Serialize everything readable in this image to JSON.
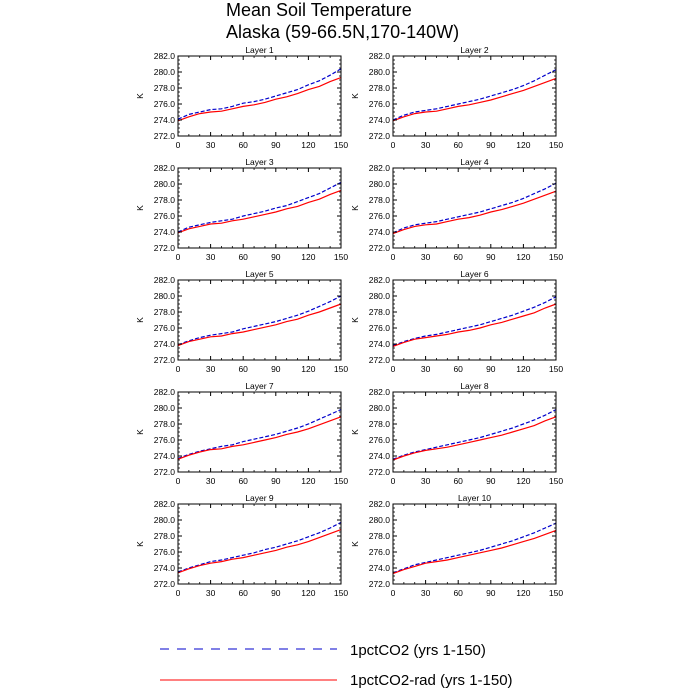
{
  "figure": {
    "title_line1": "Mean Soil Temperature",
    "title_line2": "Alaska (59-66.5N,170-140W)"
  },
  "legend": {
    "entries": [
      {
        "label": "1pctCO2 (yrs 1-150)",
        "color": "#0000cc",
        "dash": true
      },
      {
        "label": "1pctCO2-rad (yrs 1-150)",
        "color": "#ff0000",
        "dash": false
      }
    ]
  },
  "chart_data": [
    {
      "type": "line",
      "title": "Layer 1",
      "ylabel": "K",
      "xlim": [
        0,
        150
      ],
      "ylim": [
        272,
        282
      ],
      "xticks": [
        0,
        30,
        60,
        90,
        120,
        150
      ],
      "yticks": [
        272,
        274,
        276,
        278,
        280,
        282
      ],
      "x": [
        0,
        10,
        20,
        30,
        40,
        50,
        60,
        70,
        80,
        90,
        100,
        110,
        120,
        130,
        140,
        150
      ],
      "series": [
        {
          "name": "1pctCO2 (yrs 1-150)",
          "values": [
            274.1,
            274.7,
            275.0,
            275.3,
            275.4,
            275.7,
            276.1,
            276.3,
            276.6,
            277.0,
            277.4,
            277.8,
            278.4,
            278.9,
            279.6,
            280.4
          ]
        },
        {
          "name": "1pctCO2-rad (yrs 1-150)",
          "values": [
            273.9,
            274.4,
            274.8,
            275.0,
            275.1,
            275.4,
            275.7,
            275.9,
            276.2,
            276.6,
            276.9,
            277.3,
            277.8,
            278.2,
            278.8,
            279.3
          ]
        }
      ]
    },
    {
      "type": "line",
      "title": "Layer 2",
      "ylabel": "K",
      "xlim": [
        0,
        150
      ],
      "ylim": [
        272,
        282
      ],
      "xticks": [
        0,
        30,
        60,
        90,
        120,
        150
      ],
      "yticks": [
        272,
        274,
        276,
        278,
        280,
        282
      ],
      "x": [
        0,
        10,
        20,
        30,
        40,
        50,
        60,
        70,
        80,
        90,
        100,
        110,
        120,
        130,
        140,
        150
      ],
      "series": [
        {
          "name": "1pctCO2 (yrs 1-150)",
          "values": [
            274.0,
            274.6,
            275.0,
            275.2,
            275.4,
            275.7,
            276.0,
            276.3,
            276.6,
            277.0,
            277.4,
            277.8,
            278.3,
            278.9,
            279.6,
            280.3
          ]
        },
        {
          "name": "1pctCO2-rad (yrs 1-150)",
          "values": [
            273.9,
            274.4,
            274.8,
            275.0,
            275.1,
            275.4,
            275.7,
            275.9,
            276.2,
            276.5,
            276.9,
            277.3,
            277.7,
            278.2,
            278.7,
            279.2
          ]
        }
      ]
    },
    {
      "type": "line",
      "title": "Layer 3",
      "ylabel": "K",
      "xlim": [
        0,
        150
      ],
      "ylim": [
        272,
        282
      ],
      "xticks": [
        0,
        30,
        60,
        90,
        120,
        150
      ],
      "yticks": [
        272,
        274,
        276,
        278,
        280,
        282
      ],
      "x": [
        0,
        10,
        20,
        30,
        40,
        50,
        60,
        70,
        80,
        90,
        100,
        110,
        120,
        130,
        140,
        150
      ],
      "series": [
        {
          "name": "1pctCO2 (yrs 1-150)",
          "values": [
            274.0,
            274.6,
            274.9,
            275.2,
            275.4,
            275.6,
            276.0,
            276.3,
            276.6,
            277.0,
            277.3,
            277.8,
            278.3,
            278.8,
            279.5,
            280.2
          ]
        },
        {
          "name": "1pctCO2-rad (yrs 1-150)",
          "values": [
            273.9,
            274.4,
            274.7,
            275.0,
            275.1,
            275.4,
            275.6,
            275.9,
            276.2,
            276.5,
            276.9,
            277.2,
            277.7,
            278.1,
            278.7,
            279.2
          ]
        }
      ]
    },
    {
      "type": "line",
      "title": "Layer 4",
      "ylabel": "K",
      "xlim": [
        0,
        150
      ],
      "ylim": [
        272,
        282
      ],
      "xticks": [
        0,
        30,
        60,
        90,
        120,
        150
      ],
      "yticks": [
        272,
        274,
        276,
        278,
        280,
        282
      ],
      "x": [
        0,
        10,
        20,
        30,
        40,
        50,
        60,
        70,
        80,
        90,
        100,
        110,
        120,
        130,
        140,
        150
      ],
      "series": [
        {
          "name": "1pctCO2 (yrs 1-150)",
          "values": [
            273.9,
            274.5,
            274.9,
            275.1,
            275.3,
            275.6,
            275.9,
            276.2,
            276.5,
            276.9,
            277.3,
            277.7,
            278.2,
            278.8,
            279.4,
            280.1
          ]
        },
        {
          "name": "1pctCO2-rad (yrs 1-150)",
          "values": [
            273.8,
            274.3,
            274.7,
            274.9,
            275.0,
            275.3,
            275.6,
            275.8,
            276.1,
            276.5,
            276.8,
            277.2,
            277.6,
            278.1,
            278.6,
            279.1
          ]
        }
      ]
    },
    {
      "type": "line",
      "title": "Layer 5",
      "ylabel": "K",
      "xlim": [
        0,
        150
      ],
      "ylim": [
        272,
        282
      ],
      "xticks": [
        0,
        30,
        60,
        90,
        120,
        150
      ],
      "yticks": [
        272,
        274,
        276,
        278,
        280,
        282
      ],
      "x": [
        0,
        10,
        20,
        30,
        40,
        50,
        60,
        70,
        80,
        90,
        100,
        110,
        120,
        130,
        140,
        150
      ],
      "series": [
        {
          "name": "1pctCO2 (yrs 1-150)",
          "values": [
            273.9,
            274.4,
            274.8,
            275.1,
            275.3,
            275.5,
            275.9,
            276.2,
            276.5,
            276.8,
            277.2,
            277.6,
            278.1,
            278.7,
            279.3,
            280.0
          ]
        },
        {
          "name": "1pctCO2-rad (yrs 1-150)",
          "values": [
            273.8,
            274.3,
            274.6,
            274.9,
            275.0,
            275.3,
            275.5,
            275.8,
            276.1,
            276.4,
            276.8,
            277.1,
            277.6,
            278.0,
            278.5,
            279.0
          ]
        }
      ]
    },
    {
      "type": "line",
      "title": "Layer 6",
      "ylabel": "K",
      "xlim": [
        0,
        150
      ],
      "ylim": [
        272,
        282
      ],
      "xticks": [
        0,
        30,
        60,
        90,
        120,
        150
      ],
      "yticks": [
        272,
        274,
        276,
        278,
        280,
        282
      ],
      "x": [
        0,
        10,
        20,
        30,
        40,
        50,
        60,
        70,
        80,
        90,
        100,
        110,
        120,
        130,
        140,
        150
      ],
      "series": [
        {
          "name": "1pctCO2 (yrs 1-150)",
          "values": [
            273.8,
            274.3,
            274.7,
            275.0,
            275.2,
            275.5,
            275.8,
            276.1,
            276.4,
            276.8,
            277.2,
            277.6,
            278.1,
            278.6,
            279.2,
            279.9
          ]
        },
        {
          "name": "1pctCO2-rad (yrs 1-150)",
          "values": [
            273.7,
            274.2,
            274.6,
            274.8,
            275.0,
            275.2,
            275.5,
            275.7,
            276.0,
            276.4,
            276.7,
            277.1,
            277.5,
            277.9,
            278.5,
            279.0
          ]
        }
      ]
    },
    {
      "type": "line",
      "title": "Layer 7",
      "ylabel": "K",
      "xlim": [
        0,
        150
      ],
      "ylim": [
        272,
        282
      ],
      "xticks": [
        0,
        30,
        60,
        90,
        120,
        150
      ],
      "yticks": [
        272,
        274,
        276,
        278,
        280,
        282
      ],
      "x": [
        0,
        10,
        20,
        30,
        40,
        50,
        60,
        70,
        80,
        90,
        100,
        110,
        120,
        130,
        140,
        150
      ],
      "series": [
        {
          "name": "1pctCO2 (yrs 1-150)",
          "values": [
            273.7,
            274.2,
            274.6,
            274.9,
            275.2,
            275.4,
            275.8,
            276.1,
            276.4,
            276.7,
            277.1,
            277.5,
            278.0,
            278.6,
            279.2,
            279.8
          ]
        },
        {
          "name": "1pctCO2-rad (yrs 1-150)",
          "values": [
            273.6,
            274.1,
            274.5,
            274.8,
            274.9,
            275.2,
            275.4,
            275.7,
            276.0,
            276.3,
            276.7,
            277.0,
            277.4,
            277.9,
            278.4,
            278.9
          ]
        }
      ]
    },
    {
      "type": "line",
      "title": "Layer 8",
      "ylabel": "K",
      "xlim": [
        0,
        150
      ],
      "ylim": [
        272,
        282
      ],
      "xticks": [
        0,
        30,
        60,
        90,
        120,
        150
      ],
      "yticks": [
        272,
        274,
        276,
        278,
        280,
        282
      ],
      "x": [
        0,
        10,
        20,
        30,
        40,
        50,
        60,
        70,
        80,
        90,
        100,
        110,
        120,
        130,
        140,
        150
      ],
      "series": [
        {
          "name": "1pctCO2 (yrs 1-150)",
          "values": [
            273.6,
            274.1,
            274.5,
            274.8,
            275.1,
            275.4,
            275.7,
            276.0,
            276.3,
            276.7,
            277.1,
            277.5,
            278.0,
            278.5,
            279.1,
            279.8
          ]
        },
        {
          "name": "1pctCO2-rad (yrs 1-150)",
          "values": [
            273.5,
            274.0,
            274.4,
            274.7,
            274.9,
            275.1,
            275.4,
            275.7,
            276.0,
            276.3,
            276.6,
            277.0,
            277.4,
            277.8,
            278.4,
            278.9
          ]
        }
      ]
    },
    {
      "type": "line",
      "title": "Layer 9",
      "ylabel": "K",
      "xlim": [
        0,
        150
      ],
      "ylim": [
        272,
        282
      ],
      "xticks": [
        0,
        30,
        60,
        90,
        120,
        150
      ],
      "yticks": [
        272,
        274,
        276,
        278,
        280,
        282
      ],
      "x": [
        0,
        10,
        20,
        30,
        40,
        50,
        60,
        70,
        80,
        90,
        100,
        110,
        120,
        130,
        140,
        150
      ],
      "series": [
        {
          "name": "1pctCO2 (yrs 1-150)",
          "values": [
            273.5,
            274.0,
            274.4,
            274.8,
            275.0,
            275.3,
            275.6,
            275.9,
            276.3,
            276.6,
            277.0,
            277.4,
            277.9,
            278.4,
            279.0,
            279.7
          ]
        },
        {
          "name": "1pctCO2-rad (yrs 1-150)",
          "values": [
            273.4,
            273.9,
            274.3,
            274.6,
            274.8,
            275.1,
            275.3,
            275.6,
            275.9,
            276.2,
            276.6,
            276.9,
            277.3,
            277.8,
            278.3,
            278.8
          ]
        }
      ]
    },
    {
      "type": "line",
      "title": "Layer 10",
      "ylabel": "K",
      "xlim": [
        0,
        150
      ],
      "ylim": [
        272,
        282
      ],
      "xticks": [
        0,
        30,
        60,
        90,
        120,
        150
      ],
      "yticks": [
        272,
        274,
        276,
        278,
        280,
        282
      ],
      "x": [
        0,
        10,
        20,
        30,
        40,
        50,
        60,
        70,
        80,
        90,
        100,
        110,
        120,
        130,
        140,
        150
      ],
      "series": [
        {
          "name": "1pctCO2 (yrs 1-150)",
          "values": [
            273.4,
            273.9,
            274.4,
            274.7,
            275.0,
            275.3,
            275.6,
            275.9,
            276.2,
            276.6,
            277.0,
            277.4,
            277.9,
            278.4,
            279.0,
            279.6
          ]
        },
        {
          "name": "1pctCO2-rad (yrs 1-150)",
          "values": [
            273.3,
            273.8,
            274.2,
            274.6,
            274.8,
            275.0,
            275.3,
            275.6,
            275.9,
            276.2,
            276.5,
            276.9,
            277.3,
            277.7,
            278.2,
            278.7
          ]
        }
      ]
    }
  ]
}
